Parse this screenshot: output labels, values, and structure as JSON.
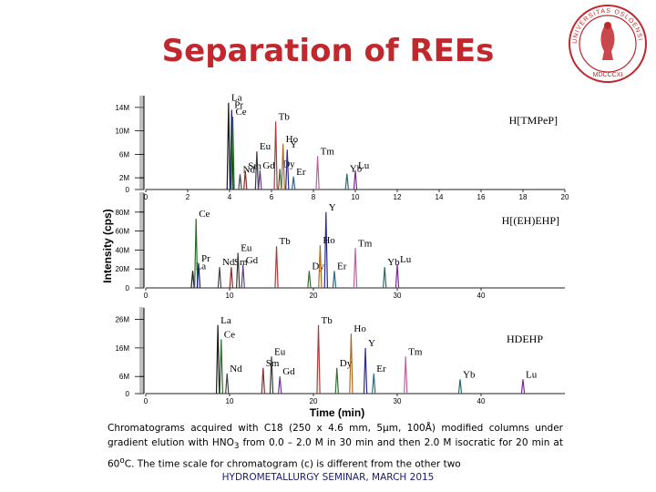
{
  "slide": {
    "title": "Separation of REEs",
    "caption_html": "Chromatograms acquired with C18 (250 x 4.6 mm, 5&micro;m, 100&Aring;) modified columns under gradient elution with HNO<sub>3</sub> from 0.0 &ndash; 2.0 M in 30 min and then 2.0 M isocratic for 20 min at 60<sup>o</sup>C. The time scale for chromatogram (c) is different from the other two",
    "footer": "HYDROMETALLURGY SEMINAR, MARCH 2015"
  },
  "seal": {
    "color": "#c0282d",
    "center_text": "MDCCCXI",
    "ring_text": "UNIVERSITAS OSLOENSIS"
  },
  "chart_data": [
    {
      "type": "line",
      "title": "H[TMPeP]",
      "ylabel": "Intensity (cps)",
      "xlim": [
        0,
        20
      ],
      "ylim": [
        0,
        16
      ],
      "x_ticks": [
        0,
        2,
        4,
        6,
        8,
        10,
        12,
        14,
        16,
        18,
        20
      ],
      "y_ticks": [
        {
          "v": 0,
          "label": "0"
        },
        {
          "v": 2,
          "label": "2M"
        },
        {
          "v": 6,
          "label": "6M"
        },
        {
          "v": 10,
          "label": "10M"
        },
        {
          "v": 14,
          "label": "14M"
        }
      ],
      "peaks": [
        {
          "label": "La",
          "x": 3.95,
          "h": 14.8,
          "color": "#1a1a1a"
        },
        {
          "label": "Pr",
          "x": 4.1,
          "h": 13.6,
          "color": "#1a1a8a"
        },
        {
          "label": "Ce",
          "x": 4.15,
          "h": 12.4,
          "color": "#2a6e2a"
        },
        {
          "label": "Nd",
          "x": 4.5,
          "h": 2.6,
          "color": "#444444"
        },
        {
          "label": "Sm",
          "x": 4.75,
          "h": 3.2,
          "color": "#8a2a2a"
        },
        {
          "label": "Eu",
          "x": 5.3,
          "h": 6.5,
          "color": "#3a3a3a"
        },
        {
          "label": "Gd",
          "x": 5.45,
          "h": 3.3,
          "color": "#6a3a8a"
        },
        {
          "label": "Tb",
          "x": 6.2,
          "h": 11.6,
          "color": "#b03a3a"
        },
        {
          "label": "Dy",
          "x": 6.4,
          "h": 3.5,
          "color": "#3a6a3a"
        },
        {
          "label": "Ho",
          "x": 6.55,
          "h": 7.8,
          "color": "#b06a20"
        },
        {
          "label": "Y",
          "x": 6.75,
          "h": 6.8,
          "color": "#2a2a8a"
        },
        {
          "label": "Er",
          "x": 7.05,
          "h": 2.2,
          "color": "#2a6a8a"
        },
        {
          "label": "Tm",
          "x": 8.2,
          "h": 5.7,
          "color": "#c060a0"
        },
        {
          "label": "Yb",
          "x": 9.6,
          "h": 2.7,
          "color": "#2a6a6a"
        },
        {
          "label": "Lu",
          "x": 10.0,
          "h": 3.3,
          "color": "#7a2a9a"
        }
      ]
    },
    {
      "type": "line",
      "title": "H[(EH)EHP]",
      "xlim": [
        0,
        50
      ],
      "ylim": [
        0,
        100
      ],
      "x_ticks": [
        0,
        10,
        20,
        30,
        40
      ],
      "y_ticks": [
        {
          "v": 0,
          "label": "0"
        },
        {
          "v": 20,
          "label": "20M"
        },
        {
          "v": 40,
          "label": "40M"
        },
        {
          "v": 60,
          "label": "60M"
        },
        {
          "v": 80,
          "label": "80M"
        }
      ],
      "peaks": [
        {
          "label": "La",
          "x": 5.6,
          "h": 18,
          "color": "#1a1a1a"
        },
        {
          "label": "Ce",
          "x": 6.0,
          "h": 73,
          "color": "#2a6e2a"
        },
        {
          "label": "Pr",
          "x": 6.3,
          "h": 26,
          "color": "#1a1a8a"
        },
        {
          "label": "Nd",
          "x": 8.8,
          "h": 22,
          "color": "#444444"
        },
        {
          "label": "Sm",
          "x": 10.2,
          "h": 22,
          "color": "#8a2a2a"
        },
        {
          "label": "Eu",
          "x": 11.0,
          "h": 37,
          "color": "#3a3a3a"
        },
        {
          "label": "Gd",
          "x": 11.6,
          "h": 24,
          "color": "#6a3a8a"
        },
        {
          "label": "Tb",
          "x": 15.6,
          "h": 44,
          "color": "#b03a3a"
        },
        {
          "label": "Dy",
          "x": 19.5,
          "h": 18,
          "color": "#3a6a3a"
        },
        {
          "label": "Ho",
          "x": 20.8,
          "h": 45,
          "color": "#b06a20"
        },
        {
          "label": "Y",
          "x": 21.5,
          "h": 80,
          "color": "#2a2a8a"
        },
        {
          "label": "Er",
          "x": 22.5,
          "h": 18,
          "color": "#2a6a8a"
        },
        {
          "label": "Tm",
          "x": 25.0,
          "h": 42,
          "color": "#c060a0"
        },
        {
          "label": "Yb",
          "x": 28.5,
          "h": 22,
          "color": "#2a6a6a"
        },
        {
          "label": "Lu",
          "x": 30.0,
          "h": 25,
          "color": "#7a2a9a"
        }
      ]
    },
    {
      "type": "line",
      "title": "HDEHP",
      "xlabel": "Time (min)",
      "xlim": [
        0,
        50
      ],
      "ylim": [
        0,
        30
      ],
      "x_ticks": [
        0,
        10,
        20,
        30,
        40
      ],
      "y_ticks": [
        {
          "v": 0,
          "label": "0"
        },
        {
          "v": 6,
          "label": "6M"
        },
        {
          "v": 16,
          "label": "16M"
        },
        {
          "v": 26,
          "label": "26M"
        }
      ],
      "peaks": [
        {
          "label": "La",
          "x": 8.6,
          "h": 24,
          "color": "#1a1a1a"
        },
        {
          "label": "Ce",
          "x": 9.0,
          "h": 19,
          "color": "#2a6e2a"
        },
        {
          "label": "Nd",
          "x": 9.7,
          "h": 7,
          "color": "#444444"
        },
        {
          "label": "Sm",
          "x": 14.0,
          "h": 9,
          "color": "#8a2a2a"
        },
        {
          "label": "Eu",
          "x": 15.0,
          "h": 13,
          "color": "#3a3a3a"
        },
        {
          "label": "Gd",
          "x": 16.0,
          "h": 6,
          "color": "#6a3a8a"
        },
        {
          "label": "Tb",
          "x": 20.6,
          "h": 24,
          "color": "#b03a3a"
        },
        {
          "label": "Dy",
          "x": 22.8,
          "h": 9,
          "color": "#3a6a3a"
        },
        {
          "label": "Ho",
          "x": 24.5,
          "h": 21,
          "color": "#b06a20"
        },
        {
          "label": "Y",
          "x": 26.2,
          "h": 16,
          "color": "#2a2a8a"
        },
        {
          "label": "Er",
          "x": 27.2,
          "h": 7,
          "color": "#2a6a8a"
        },
        {
          "label": "Tm",
          "x": 31.0,
          "h": 13,
          "color": "#c060a0"
        },
        {
          "label": "Yb",
          "x": 37.5,
          "h": 5,
          "color": "#2a6a6a"
        },
        {
          "label": "Lu",
          "x": 45.0,
          "h": 5,
          "color": "#7a2a9a"
        }
      ]
    }
  ]
}
